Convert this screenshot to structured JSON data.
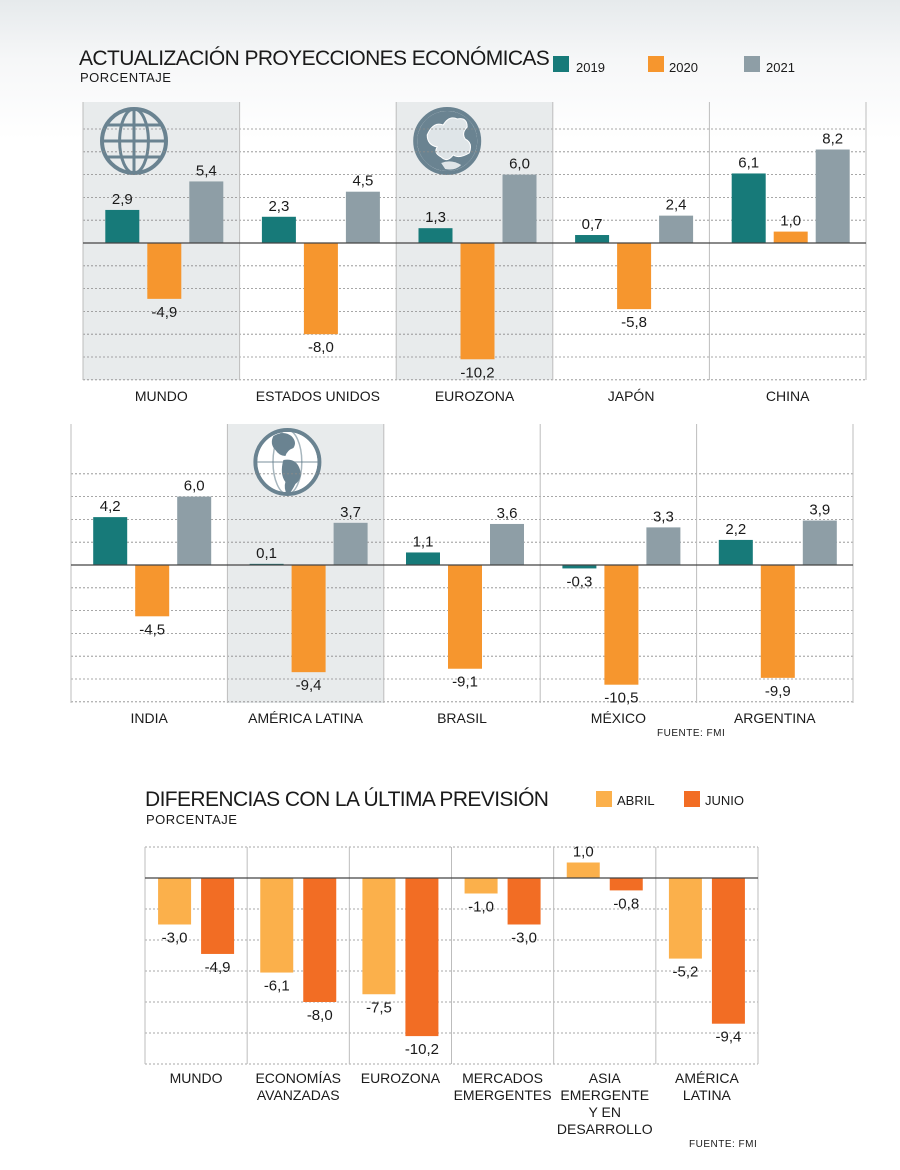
{
  "colors": {
    "c2019": "#177a79",
    "c2020": "#f6962e",
    "c2021": "#8e9ea6",
    "abril": "#fbb04b",
    "junio": "#f26d24",
    "highlight": "#e8ebec",
    "grid": "#8a8a8a"
  },
  "chart1": {
    "title": "ACTUALIZACIÓN PROYECCIONES ECONÓMICAS",
    "subtitle": "PORCENTAJE",
    "legend": [
      "2019",
      "2020",
      "2021"
    ],
    "source": "FUENTE: FMI"
  },
  "chart2": {
    "title": "DIFERENCIAS CON LA ÚLTIMA PREVISIÓN",
    "subtitle": "PORCENTAJE",
    "legend": [
      "ABRIL",
      "JUNIO"
    ],
    "source": "FUENTE: FMI"
  },
  "chart_data": [
    {
      "type": "bar",
      "categories": [
        "MUNDO",
        "ESTADOS UNIDOS",
        "EUROZONA",
        "JAPÓN",
        "CHINA"
      ],
      "series": [
        {
          "name": "2019",
          "values": [
            2.9,
            2.3,
            1.3,
            0.7,
            6.1
          ]
        },
        {
          "name": "2020",
          "values": [
            -4.9,
            -8.0,
            -10.2,
            -5.8,
            1.0
          ]
        },
        {
          "name": "2021",
          "values": [
            5.4,
            4.5,
            6.0,
            2.4,
            8.2
          ]
        }
      ],
      "labels": [
        [
          "2,9",
          "-4,9",
          "5,4"
        ],
        [
          "2,3",
          "-8,0",
          "4,5"
        ],
        [
          "1,3",
          "-10,2",
          "6,0"
        ],
        [
          "0,7",
          "-5,8",
          "2,4"
        ],
        [
          "6,1",
          "1,0",
          "8,2"
        ]
      ],
      "icons": [
        "globe-icon",
        "",
        "europe-globe-icon",
        "",
        ""
      ],
      "ylim": [
        -12,
        10
      ],
      "grid": true
    },
    {
      "type": "bar",
      "categories": [
        "INDIA",
        "AMÉRICA LATINA",
        "BRASIL",
        "MÉXICO",
        "ARGENTINA"
      ],
      "series": [
        {
          "name": "2019",
          "values": [
            4.2,
            0.1,
            1.1,
            -0.3,
            2.2
          ]
        },
        {
          "name": "2020",
          "values": [
            -4.5,
            -9.4,
            -9.1,
            -10.5,
            -9.9
          ]
        },
        {
          "name": "2021",
          "values": [
            6.0,
            3.7,
            3.6,
            3.3,
            3.9
          ]
        }
      ],
      "labels": [
        [
          "4,2",
          "-4,5",
          "6,0"
        ],
        [
          "0,1",
          "-9,4",
          "3,7"
        ],
        [
          "1,1",
          "-9,1",
          "3,6"
        ],
        [
          "-0,3",
          "-10,5",
          "3,3"
        ],
        [
          "2,2",
          "-9,9",
          "3,9"
        ]
      ],
      "icons": [
        "",
        "americas-globe-icon",
        "",
        "",
        ""
      ],
      "ylim": [
        -12,
        8
      ],
      "grid": true
    },
    {
      "type": "bar",
      "categories": [
        "MUNDO",
        "ECONOMÍAS AVANZADAS",
        "EUROZONA",
        "MERCADOS EMERGENTES",
        "ASIA EMERGENTE Y EN DESARROLLO",
        "AMÉRICA LATINA"
      ],
      "category_lines": [
        [
          "MUNDO"
        ],
        [
          "ECONOMÍAS",
          "AVANZADAS"
        ],
        [
          "EUROZONA"
        ],
        [
          "MERCADOS",
          "EMERGENTES"
        ],
        [
          "ASIA",
          "EMERGENTE",
          "Y EN",
          "DESARROLLO"
        ],
        [
          "AMÉRICA",
          "LATINA"
        ]
      ],
      "series": [
        {
          "name": "ABRIL",
          "values": [
            -3.0,
            -6.1,
            -7.5,
            -1.0,
            1.0,
            -5.2
          ]
        },
        {
          "name": "JUNIO",
          "values": [
            -4.9,
            -8.0,
            -10.2,
            -3.0,
            -0.8,
            -9.4
          ]
        }
      ],
      "labels": [
        [
          "-3,0",
          "-4,9"
        ],
        [
          "-6,1",
          "-8,0"
        ],
        [
          "-7,5",
          "-10,2"
        ],
        [
          "-1,0",
          "-3,0"
        ],
        [
          "1,0",
          "-0,8"
        ],
        [
          "-5,2",
          "-9,4"
        ]
      ],
      "ylim": [
        -12,
        2
      ],
      "grid": true
    }
  ]
}
